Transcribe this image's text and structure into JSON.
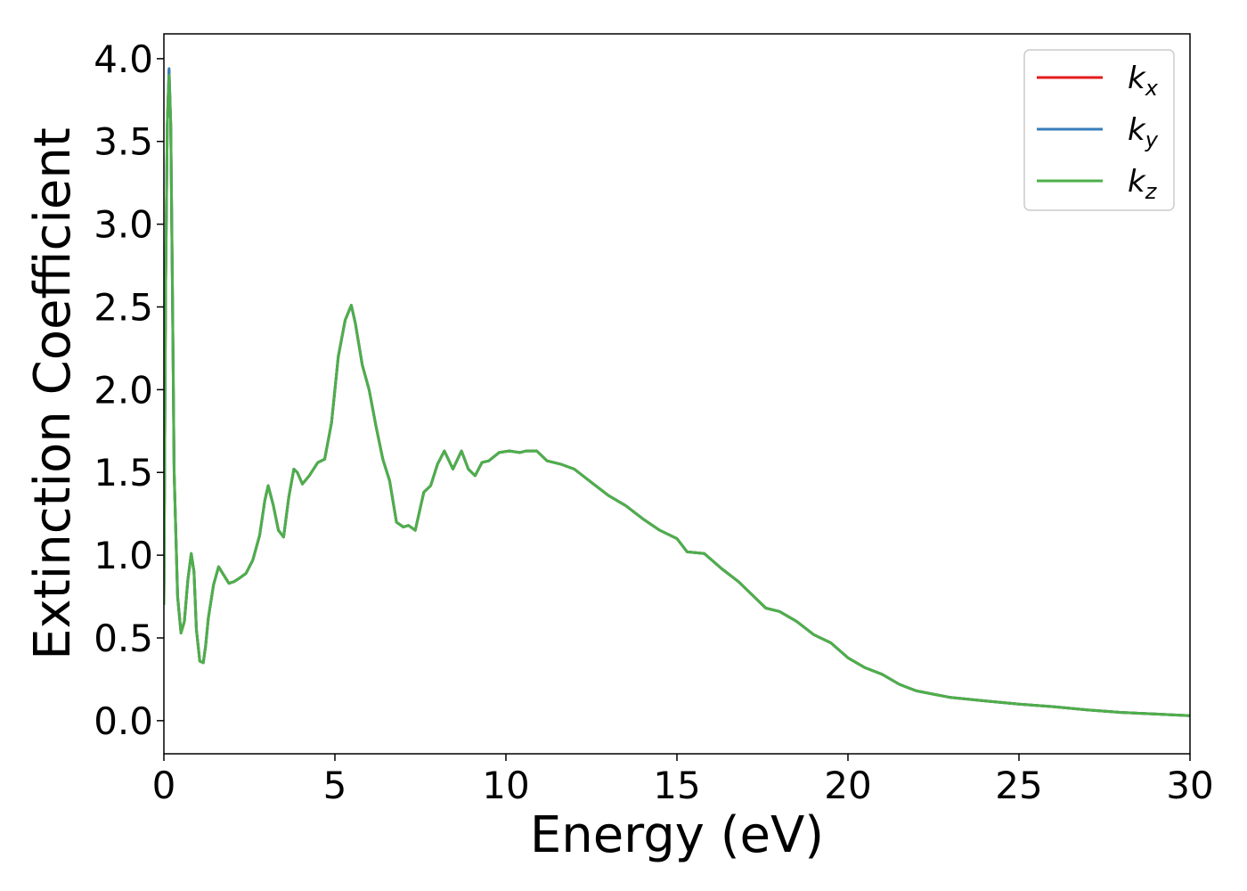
{
  "chart_data": {
    "type": "line",
    "title": "",
    "xlabel": "Energy (eV)",
    "ylabel": "Extinction Coefficient",
    "xlim": [
      0,
      30
    ],
    "ylim": [
      -0.2,
      4.15
    ],
    "xticks": [
      0,
      5,
      10,
      15,
      20,
      25,
      30
    ],
    "yticks": [
      0.0,
      0.5,
      1.0,
      1.5,
      2.0,
      2.5,
      3.0,
      3.5,
      4.0
    ],
    "xtick_labels": [
      "0",
      "5",
      "10",
      "15",
      "20",
      "25",
      "30"
    ],
    "ytick_labels": [
      "0.0",
      "0.5",
      "1.0",
      "1.5",
      "2.0",
      "2.5",
      "3.0",
      "3.5",
      "4.0"
    ],
    "grid": false,
    "legend_position": "top-right",
    "series": [
      {
        "name": "k_x",
        "label_main": "k",
        "label_sub": "x",
        "color": "#e41a1c",
        "x": [
          0,
          0.05,
          0.1,
          0.15,
          0.2,
          0.25,
          0.3,
          0.4,
          0.5,
          0.6,
          0.7,
          0.8,
          0.88,
          0.95,
          1.05,
          1.15,
          1.22,
          1.3,
          1.45,
          1.6,
          1.75,
          1.9,
          2.05,
          2.2,
          2.4,
          2.6,
          2.8,
          2.95,
          3.05,
          3.2,
          3.35,
          3.5,
          3.65,
          3.8,
          3.9,
          4.05,
          4.25,
          4.5,
          4.7,
          4.9,
          5.1,
          5.3,
          5.48,
          5.6,
          5.8,
          6.0,
          6.2,
          6.4,
          6.6,
          6.8,
          7.0,
          7.15,
          7.35,
          7.6,
          7.8,
          8.0,
          8.2,
          8.45,
          8.7,
          8.9,
          9.1,
          9.3,
          9.5,
          9.8,
          10.1,
          10.4,
          10.6,
          10.9,
          11.2,
          11.6,
          12.0,
          12.5,
          13.0,
          13.5,
          14.0,
          14.5,
          15.0,
          15.3,
          15.8,
          16.3,
          16.8,
          17.2,
          17.6,
          18.0,
          18.5,
          19.0,
          19.5,
          20.0,
          20.5,
          21.0,
          21.5,
          22.0,
          22.5,
          23.0,
          24.0,
          25.0,
          26.0,
          27.0,
          28.0,
          29.0,
          30.0
        ],
        "values": [
          0.7,
          2.6,
          3.6,
          3.93,
          3.6,
          2.6,
          1.5,
          0.75,
          0.53,
          0.6,
          0.85,
          1.01,
          0.9,
          0.55,
          0.36,
          0.35,
          0.45,
          0.62,
          0.82,
          0.93,
          0.88,
          0.83,
          0.84,
          0.86,
          0.89,
          0.97,
          1.12,
          1.33,
          1.42,
          1.3,
          1.15,
          1.11,
          1.35,
          1.52,
          1.5,
          1.43,
          1.48,
          1.56,
          1.58,
          1.8,
          2.2,
          2.42,
          2.51,
          2.4,
          2.15,
          2.0,
          1.78,
          1.58,
          1.45,
          1.2,
          1.17,
          1.18,
          1.15,
          1.38,
          1.42,
          1.55,
          1.63,
          1.52,
          1.63,
          1.52,
          1.48,
          1.56,
          1.57,
          1.62,
          1.63,
          1.62,
          1.63,
          1.63,
          1.57,
          1.55,
          1.52,
          1.44,
          1.36,
          1.3,
          1.22,
          1.15,
          1.1,
          1.02,
          1.01,
          0.92,
          0.84,
          0.76,
          0.68,
          0.66,
          0.6,
          0.52,
          0.47,
          0.38,
          0.32,
          0.28,
          0.22,
          0.18,
          0.16,
          0.14,
          0.12,
          0.1,
          0.085,
          0.065,
          0.05,
          0.04,
          0.03
        ]
      },
      {
        "name": "k_y",
        "label_main": "k",
        "label_sub": "y",
        "color": "#377eb8",
        "x": [
          0,
          0.05,
          0.1,
          0.15,
          0.2,
          0.25,
          0.3,
          0.4,
          0.5,
          0.6,
          0.7,
          0.8,
          0.88,
          0.95,
          1.05,
          1.15,
          1.22,
          1.3,
          1.45,
          1.6,
          1.75,
          1.9,
          2.05,
          2.2,
          2.4,
          2.6,
          2.8,
          2.95,
          3.05,
          3.2,
          3.35,
          3.5,
          3.65,
          3.8,
          3.9,
          4.05,
          4.25,
          4.5,
          4.7,
          4.9,
          5.1,
          5.3,
          5.48,
          5.6,
          5.8,
          6.0,
          6.2,
          6.4,
          6.6,
          6.8,
          7.0,
          7.15,
          7.35,
          7.6,
          7.8,
          8.0,
          8.2,
          8.45,
          8.7,
          8.9,
          9.1,
          9.3,
          9.5,
          9.8,
          10.1,
          10.4,
          10.6,
          10.9,
          11.2,
          11.6,
          12.0,
          12.5,
          13.0,
          13.5,
          14.0,
          14.5,
          15.0,
          15.3,
          15.8,
          16.3,
          16.8,
          17.2,
          17.6,
          18.0,
          18.5,
          19.0,
          19.5,
          20.0,
          20.5,
          21.0,
          21.5,
          22.0,
          22.5,
          23.0,
          24.0,
          25.0,
          26.0,
          27.0,
          28.0,
          29.0,
          30.0
        ],
        "values": [
          0.7,
          2.6,
          3.6,
          3.94,
          3.6,
          2.6,
          1.5,
          0.75,
          0.53,
          0.6,
          0.85,
          1.01,
          0.9,
          0.55,
          0.36,
          0.35,
          0.45,
          0.62,
          0.82,
          0.93,
          0.88,
          0.83,
          0.84,
          0.86,
          0.89,
          0.97,
          1.12,
          1.33,
          1.42,
          1.3,
          1.15,
          1.11,
          1.35,
          1.52,
          1.5,
          1.43,
          1.48,
          1.56,
          1.58,
          1.8,
          2.2,
          2.42,
          2.51,
          2.4,
          2.15,
          2.0,
          1.78,
          1.58,
          1.45,
          1.2,
          1.17,
          1.18,
          1.15,
          1.38,
          1.42,
          1.55,
          1.63,
          1.52,
          1.63,
          1.52,
          1.48,
          1.56,
          1.57,
          1.62,
          1.63,
          1.62,
          1.63,
          1.63,
          1.57,
          1.55,
          1.52,
          1.44,
          1.36,
          1.3,
          1.22,
          1.15,
          1.1,
          1.02,
          1.01,
          0.92,
          0.84,
          0.76,
          0.68,
          0.66,
          0.6,
          0.52,
          0.47,
          0.38,
          0.32,
          0.28,
          0.22,
          0.18,
          0.16,
          0.14,
          0.12,
          0.1,
          0.085,
          0.065,
          0.05,
          0.04,
          0.03
        ]
      },
      {
        "name": "k_z",
        "label_main": "k",
        "label_sub": "z",
        "color": "#4daf4a",
        "x": [
          0,
          0.05,
          0.1,
          0.15,
          0.2,
          0.25,
          0.3,
          0.4,
          0.5,
          0.6,
          0.7,
          0.8,
          0.88,
          0.95,
          1.05,
          1.15,
          1.22,
          1.3,
          1.45,
          1.6,
          1.75,
          1.9,
          2.05,
          2.2,
          2.4,
          2.6,
          2.8,
          2.95,
          3.05,
          3.2,
          3.35,
          3.5,
          3.65,
          3.8,
          3.9,
          4.05,
          4.25,
          4.5,
          4.7,
          4.9,
          5.1,
          5.3,
          5.48,
          5.6,
          5.8,
          6.0,
          6.2,
          6.4,
          6.6,
          6.8,
          7.0,
          7.15,
          7.35,
          7.6,
          7.8,
          8.0,
          8.2,
          8.45,
          8.7,
          8.9,
          9.1,
          9.3,
          9.5,
          9.8,
          10.1,
          10.4,
          10.6,
          10.9,
          11.2,
          11.6,
          12.0,
          12.5,
          13.0,
          13.5,
          14.0,
          14.5,
          15.0,
          15.3,
          15.8,
          16.3,
          16.8,
          17.2,
          17.6,
          18.0,
          18.5,
          19.0,
          19.5,
          20.0,
          20.5,
          21.0,
          21.5,
          22.0,
          22.5,
          23.0,
          24.0,
          25.0,
          26.0,
          27.0,
          28.0,
          29.0,
          30.0
        ],
        "values": [
          0.7,
          2.6,
          3.6,
          3.9,
          3.6,
          2.6,
          1.5,
          0.75,
          0.53,
          0.6,
          0.85,
          1.01,
          0.9,
          0.55,
          0.36,
          0.35,
          0.45,
          0.62,
          0.82,
          0.93,
          0.88,
          0.83,
          0.84,
          0.86,
          0.89,
          0.97,
          1.12,
          1.33,
          1.42,
          1.3,
          1.15,
          1.11,
          1.35,
          1.52,
          1.5,
          1.43,
          1.48,
          1.56,
          1.58,
          1.8,
          2.2,
          2.42,
          2.51,
          2.4,
          2.15,
          2.0,
          1.78,
          1.58,
          1.45,
          1.2,
          1.17,
          1.18,
          1.15,
          1.38,
          1.42,
          1.55,
          1.63,
          1.52,
          1.63,
          1.52,
          1.48,
          1.56,
          1.57,
          1.62,
          1.63,
          1.62,
          1.63,
          1.63,
          1.57,
          1.55,
          1.52,
          1.44,
          1.36,
          1.3,
          1.22,
          1.15,
          1.1,
          1.02,
          1.01,
          0.92,
          0.84,
          0.76,
          0.68,
          0.66,
          0.6,
          0.52,
          0.47,
          0.38,
          0.32,
          0.28,
          0.22,
          0.18,
          0.16,
          0.14,
          0.12,
          0.1,
          0.085,
          0.065,
          0.05,
          0.04,
          0.03
        ]
      }
    ]
  }
}
